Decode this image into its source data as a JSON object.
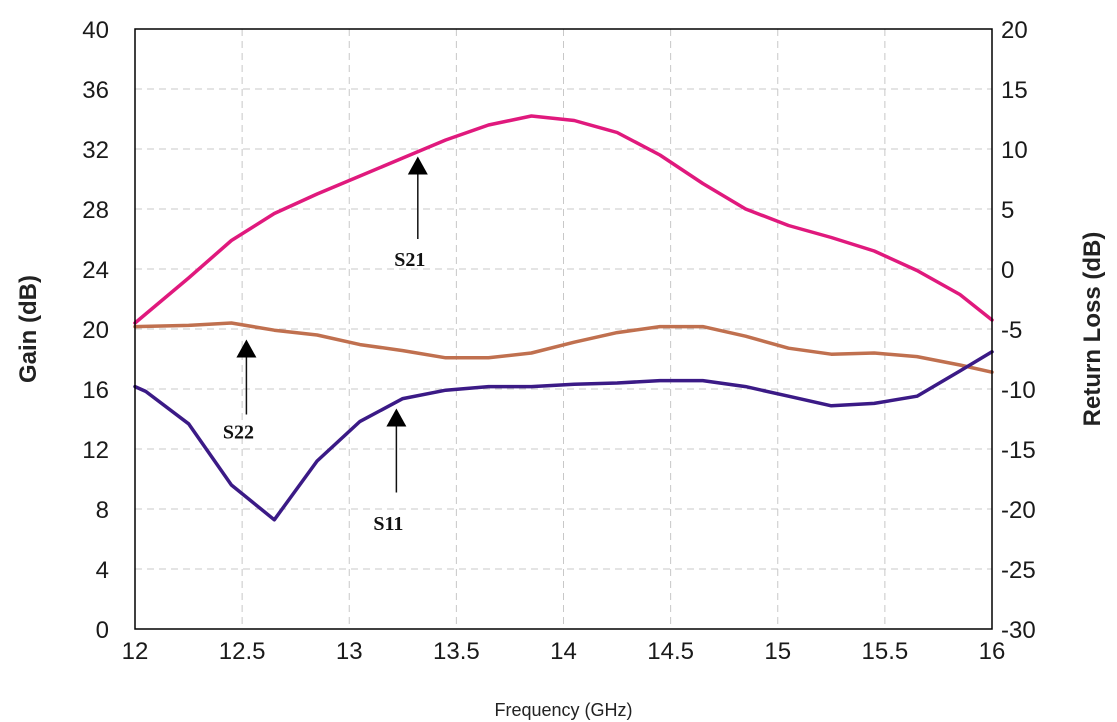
{
  "chart_data": {
    "type": "line",
    "title": "",
    "xlabel": "Frequency (GHz)",
    "ylabel_left": "Gain (dB)",
    "ylabel_right": "Return Loss (dB)",
    "xlim": [
      12,
      16
    ],
    "ylim_left": [
      0,
      40
    ],
    "ylim_right": [
      -30,
      20
    ],
    "grid": true,
    "legend": "none",
    "x_ticks": [
      "12",
      "12.5",
      "13",
      "13.5",
      "14",
      "14.5",
      "15",
      "15.5",
      "16"
    ],
    "y_ticks_left": [
      "0",
      "4",
      "8",
      "12",
      "16",
      "20",
      "24",
      "28",
      "32",
      "36",
      "40"
    ],
    "y_ticks_right": [
      "-30",
      "-25",
      "-20",
      "-15",
      "-10",
      "-5",
      "0",
      "5",
      "10",
      "15",
      "20"
    ],
    "series": [
      {
        "name": "S21",
        "axis": "left",
        "color": "#e0197d",
        "x": [
          12.0,
          12.25,
          12.45,
          12.65,
          12.85,
          13.05,
          13.25,
          13.45,
          13.65,
          13.85,
          14.05,
          14.25,
          14.45,
          14.65,
          14.85,
          15.05,
          15.25,
          15.45,
          15.65,
          15.85,
          16.0
        ],
        "y": [
          20.4,
          23.4,
          25.9,
          27.7,
          29.0,
          30.2,
          31.4,
          32.6,
          33.6,
          34.2,
          33.9,
          33.1,
          31.6,
          29.7,
          28.0,
          26.9,
          26.1,
          25.2,
          23.9,
          22.3,
          20.6
        ]
      },
      {
        "name": "S22",
        "axis": "right",
        "color": "#c0704f",
        "x": [
          12.0,
          12.25,
          12.45,
          12.65,
          12.85,
          13.05,
          13.25,
          13.45,
          13.65,
          13.85,
          14.05,
          14.25,
          14.45,
          14.65,
          14.85,
          15.05,
          15.25,
          15.45,
          15.65,
          15.85,
          16.0
        ],
        "y": [
          -4.8,
          -4.7,
          -4.5,
          -5.1,
          -5.5,
          -6.3,
          -6.8,
          -7.4,
          -7.4,
          -7.0,
          -6.1,
          -5.3,
          -4.8,
          -4.8,
          -5.6,
          -6.6,
          -7.1,
          -7.0,
          -7.3,
          -8.0,
          -8.6
        ]
      },
      {
        "name": "S11",
        "axis": "right",
        "color": "#3b1a86",
        "x": [
          12.0,
          12.05,
          12.25,
          12.45,
          12.65,
          12.85,
          13.05,
          13.25,
          13.45,
          13.65,
          13.85,
          14.05,
          14.25,
          14.45,
          14.65,
          14.85,
          15.05,
          15.25,
          15.45,
          15.65,
          15.85,
          16.0
        ],
        "y": [
          -9.8,
          -10.2,
          -12.9,
          -18.0,
          -20.9,
          -16.0,
          -12.7,
          -10.8,
          -10.1,
          -9.8,
          -9.8,
          -9.6,
          -9.5,
          -9.3,
          -9.3,
          -9.8,
          -10.6,
          -11.4,
          -11.2,
          -10.6,
          -8.5,
          -6.9
        ]
      }
    ],
    "annotations": [
      {
        "text": "S21",
        "series": "S21",
        "arrow_x": 13.32,
        "arrow_y_left": 31.5,
        "tail_y_left": 26.0,
        "label_y_left": 24.2
      },
      {
        "text": "S22",
        "series": "S22",
        "arrow_x": 12.52,
        "arrow_y_left": 19.3,
        "tail_y_left": 14.3,
        "label_y_left": 12.7
      },
      {
        "text": "S11",
        "series": "S11",
        "arrow_x": 13.22,
        "arrow_y_left": 14.7,
        "tail_y_left": 9.1,
        "label_y_left": 6.6
      }
    ]
  }
}
